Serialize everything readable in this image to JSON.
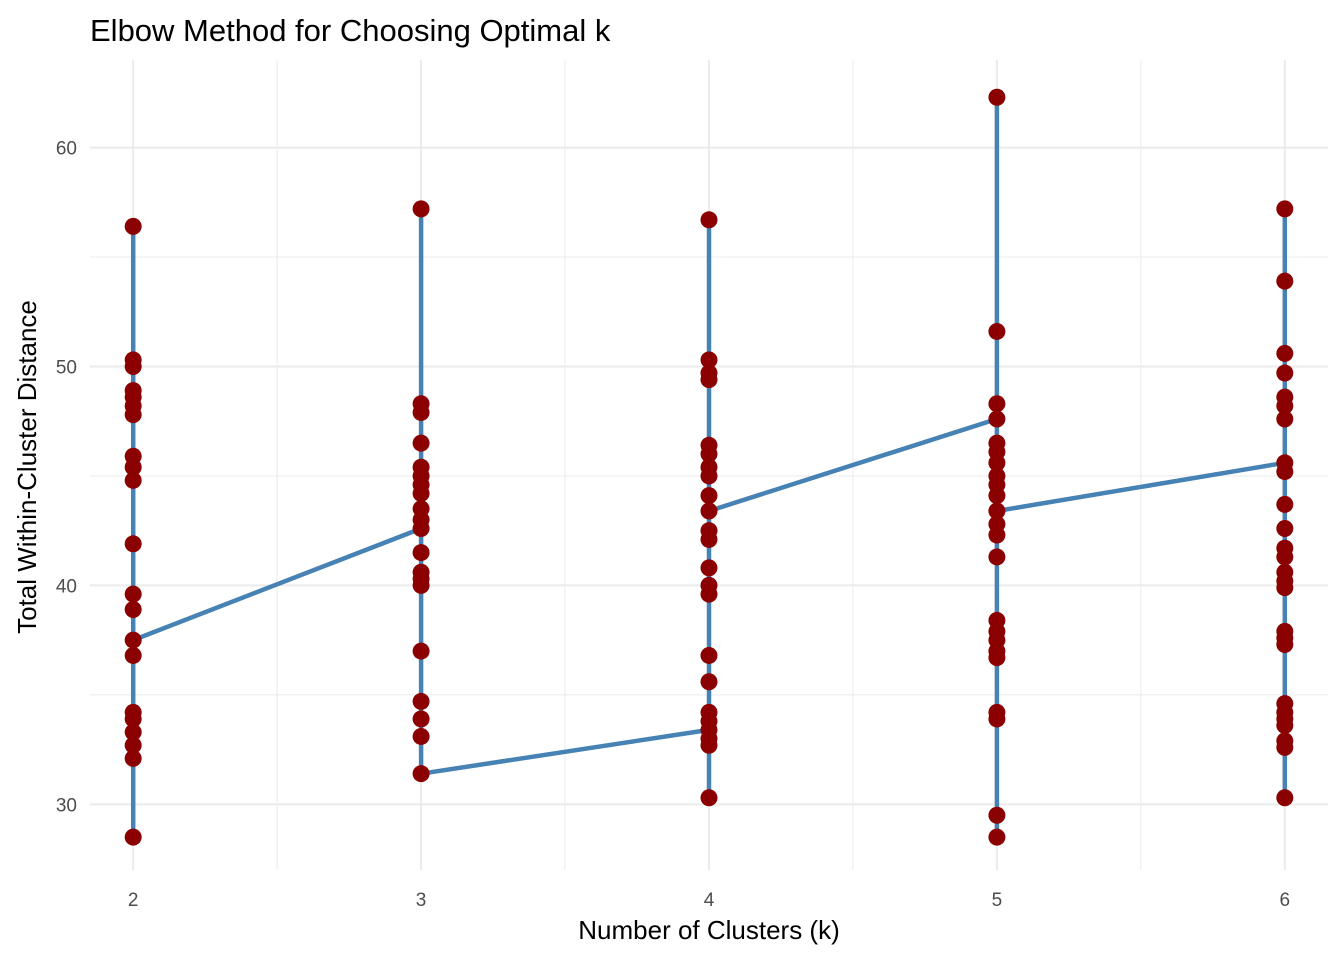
{
  "chart_data": {
    "type": "line",
    "title": "Elbow Method for Choosing Optimal k",
    "xlabel": "Number of Clusters (k)",
    "ylabel": "Total Within-Cluster Distance",
    "x_ticks": [
      2,
      3,
      4,
      5,
      6
    ],
    "y_ticks": [
      30,
      40,
      50,
      60
    ],
    "xlim": [
      1.85,
      6.15
    ],
    "ylim": [
      27,
      64
    ],
    "grid": true,
    "legend": "none",
    "colors": {
      "line": "#4682b4",
      "point": "#8b0000",
      "grid": "#ebebeb"
    },
    "points": [
      {
        "x": 2,
        "y": 56.4
      },
      {
        "x": 2,
        "y": 50.3
      },
      {
        "x": 2,
        "y": 50.0
      },
      {
        "x": 2,
        "y": 48.9
      },
      {
        "x": 2,
        "y": 48.6
      },
      {
        "x": 2,
        "y": 48.2
      },
      {
        "x": 2,
        "y": 47.8
      },
      {
        "x": 2,
        "y": 45.9
      },
      {
        "x": 2,
        "y": 45.4
      },
      {
        "x": 2,
        "y": 44.8
      },
      {
        "x": 2,
        "y": 41.9
      },
      {
        "x": 2,
        "y": 39.6
      },
      {
        "x": 2,
        "y": 38.9
      },
      {
        "x": 2,
        "y": 37.5
      },
      {
        "x": 2,
        "y": 36.8
      },
      {
        "x": 2,
        "y": 34.2
      },
      {
        "x": 2,
        "y": 33.9
      },
      {
        "x": 2,
        "y": 33.3
      },
      {
        "x": 2,
        "y": 32.7
      },
      {
        "x": 2,
        "y": 32.1
      },
      {
        "x": 2,
        "y": 28.5
      },
      {
        "x": 3,
        "y": 57.2
      },
      {
        "x": 3,
        "y": 48.3
      },
      {
        "x": 3,
        "y": 47.9
      },
      {
        "x": 3,
        "y": 46.5
      },
      {
        "x": 3,
        "y": 45.4
      },
      {
        "x": 3,
        "y": 45.0
      },
      {
        "x": 3,
        "y": 44.6
      },
      {
        "x": 3,
        "y": 44.2
      },
      {
        "x": 3,
        "y": 43.5
      },
      {
        "x": 3,
        "y": 43.0
      },
      {
        "x": 3,
        "y": 42.6
      },
      {
        "x": 3,
        "y": 41.5
      },
      {
        "x": 3,
        "y": 40.6
      },
      {
        "x": 3,
        "y": 40.3
      },
      {
        "x": 3,
        "y": 40.0
      },
      {
        "x": 3,
        "y": 37.0
      },
      {
        "x": 3,
        "y": 34.7
      },
      {
        "x": 3,
        "y": 33.9
      },
      {
        "x": 3,
        "y": 33.1
      },
      {
        "x": 3,
        "y": 31.4
      },
      {
        "x": 4,
        "y": 56.7
      },
      {
        "x": 4,
        "y": 50.3
      },
      {
        "x": 4,
        "y": 49.7
      },
      {
        "x": 4,
        "y": 49.4
      },
      {
        "x": 4,
        "y": 46.4
      },
      {
        "x": 4,
        "y": 46.0
      },
      {
        "x": 4,
        "y": 45.4
      },
      {
        "x": 4,
        "y": 45.0
      },
      {
        "x": 4,
        "y": 44.1
      },
      {
        "x": 4,
        "y": 43.4
      },
      {
        "x": 4,
        "y": 42.5
      },
      {
        "x": 4,
        "y": 42.1
      },
      {
        "x": 4,
        "y": 40.8
      },
      {
        "x": 4,
        "y": 40.0
      },
      {
        "x": 4,
        "y": 39.6
      },
      {
        "x": 4,
        "y": 36.8
      },
      {
        "x": 4,
        "y": 35.6
      },
      {
        "x": 4,
        "y": 34.2
      },
      {
        "x": 4,
        "y": 33.8
      },
      {
        "x": 4,
        "y": 33.4
      },
      {
        "x": 4,
        "y": 33.0
      },
      {
        "x": 4,
        "y": 32.7
      },
      {
        "x": 4,
        "y": 30.3
      },
      {
        "x": 5,
        "y": 62.3
      },
      {
        "x": 5,
        "y": 51.6
      },
      {
        "x": 5,
        "y": 48.3
      },
      {
        "x": 5,
        "y": 47.6
      },
      {
        "x": 5,
        "y": 46.5
      },
      {
        "x": 5,
        "y": 46.1
      },
      {
        "x": 5,
        "y": 45.6
      },
      {
        "x": 5,
        "y": 45.0
      },
      {
        "x": 5,
        "y": 44.6
      },
      {
        "x": 5,
        "y": 44.1
      },
      {
        "x": 5,
        "y": 43.4
      },
      {
        "x": 5,
        "y": 42.8
      },
      {
        "x": 5,
        "y": 42.3
      },
      {
        "x": 5,
        "y": 41.3
      },
      {
        "x": 5,
        "y": 38.4
      },
      {
        "x": 5,
        "y": 37.9
      },
      {
        "x": 5,
        "y": 37.5
      },
      {
        "x": 5,
        "y": 37.0
      },
      {
        "x": 5,
        "y": 36.7
      },
      {
        "x": 5,
        "y": 34.2
      },
      {
        "x": 5,
        "y": 33.9
      },
      {
        "x": 5,
        "y": 29.5
      },
      {
        "x": 5,
        "y": 28.5
      },
      {
        "x": 6,
        "y": 57.2
      },
      {
        "x": 6,
        "y": 53.9
      },
      {
        "x": 6,
        "y": 50.6
      },
      {
        "x": 6,
        "y": 49.7
      },
      {
        "x": 6,
        "y": 48.6
      },
      {
        "x": 6,
        "y": 48.2
      },
      {
        "x": 6,
        "y": 47.6
      },
      {
        "x": 6,
        "y": 45.6
      },
      {
        "x": 6,
        "y": 45.2
      },
      {
        "x": 6,
        "y": 43.7
      },
      {
        "x": 6,
        "y": 42.6
      },
      {
        "x": 6,
        "y": 41.7
      },
      {
        "x": 6,
        "y": 41.3
      },
      {
        "x": 6,
        "y": 40.6
      },
      {
        "x": 6,
        "y": 40.2
      },
      {
        "x": 6,
        "y": 39.9
      },
      {
        "x": 6,
        "y": 37.9
      },
      {
        "x": 6,
        "y": 37.6
      },
      {
        "x": 6,
        "y": 37.3
      },
      {
        "x": 6,
        "y": 34.6
      },
      {
        "x": 6,
        "y": 34.2
      },
      {
        "x": 6,
        "y": 33.9
      },
      {
        "x": 6,
        "y": 33.6
      },
      {
        "x": 6,
        "y": 32.9
      },
      {
        "x": 6,
        "y": 32.6
      },
      {
        "x": 6,
        "y": 30.3
      }
    ],
    "path": [
      {
        "x": 2,
        "y": 56.4
      },
      {
        "x": 2,
        "y": 28.5
      },
      {
        "x": 2,
        "y": 37.5
      },
      {
        "x": 3,
        "y": 42.6
      },
      {
        "x": 3,
        "y": 57.2
      },
      {
        "x": 3,
        "y": 31.4
      },
      {
        "x": 4,
        "y": 33.4
      },
      {
        "x": 4,
        "y": 56.7
      },
      {
        "x": 4,
        "y": 30.3
      },
      {
        "x": 4,
        "y": 43.4
      },
      {
        "x": 5,
        "y": 47.6
      },
      {
        "x": 5,
        "y": 62.3
      },
      {
        "x": 5,
        "y": 28.5
      },
      {
        "x": 5,
        "y": 43.4
      },
      {
        "x": 6,
        "y": 45.6
      },
      {
        "x": 6,
        "y": 57.2
      },
      {
        "x": 6,
        "y": 30.3
      }
    ]
  }
}
